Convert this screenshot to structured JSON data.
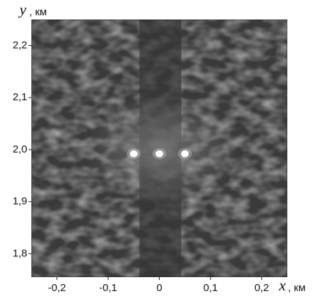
{
  "chart_data": {
    "type": "image",
    "x_label": "x",
    "x_unit": ", км",
    "y_label": "y",
    "y_unit": ", км",
    "xlim": [
      -0.25,
      0.25
    ],
    "xticks": [
      {
        "value": -0.2,
        "label": "-0,2"
      },
      {
        "value": -0.1,
        "label": "-0,1"
      },
      0,
      {
        "value": 0.1,
        "label": "0,1"
      },
      {
        "value": 0.2,
        "label": "0,2"
      }
    ],
    "ylim": [
      1.755,
      2.25
    ],
    "yticks": [
      {
        "value": 1.8,
        "label": "1,8"
      },
      {
        "value": 1.9,
        "label": "1,9"
      },
      {
        "value": 2.0,
        "label": "2,0"
      },
      {
        "value": 2.1,
        "label": "2,1"
      },
      {
        "value": 2.2,
        "label": "2,2"
      }
    ],
    "bright_spots": {
      "x": [
        -0.05,
        0,
        0.05
      ],
      "y": [
        1.992,
        1.992,
        1.992
      ],
      "color": "#ffffff"
    }
  }
}
